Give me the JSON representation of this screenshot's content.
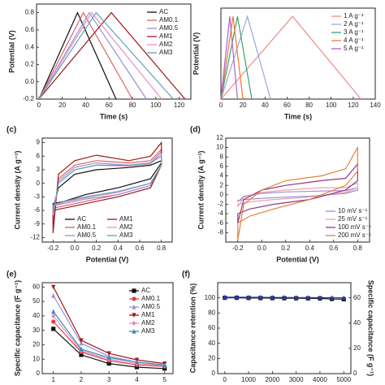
{
  "chart_data": [
    {
      "type": "line",
      "xlabel": "Time (s)",
      "ylabel": "Potential (V)",
      "xlim": [
        -2,
        130
      ],
      "xticks": [
        0,
        20,
        40,
        60,
        80,
        100,
        120
      ],
      "ylim": [
        -0.2,
        0.9
      ],
      "yticks": [
        -0.2,
        {
          "value": 0,
          "label": "0.0"
        },
        0.2,
        0.4,
        0.6,
        0.8
      ],
      "legend": "upper right",
      "series": [
        {
          "name": "AC",
          "color": "#111111",
          "x": [
            0,
            33,
            66
          ],
          "values": [
            -0.2,
            0.8,
            -0.2
          ]
        },
        {
          "name": "AM0.1",
          "color": "#e06060",
          "x": [
            0,
            38,
            80
          ],
          "values": [
            -0.2,
            0.8,
            -0.2
          ]
        },
        {
          "name": "AM0.5",
          "color": "#9a8fd8",
          "x": [
            0,
            43,
            92
          ],
          "values": [
            -0.2,
            0.8,
            -0.2
          ]
        },
        {
          "name": "AM1",
          "color": "#a01818",
          "x": [
            0,
            62,
            125
          ],
          "values": [
            -0.2,
            0.8,
            -0.2
          ]
        },
        {
          "name": "AM2",
          "color": "#e58fbf",
          "x": [
            0,
            45,
            105
          ],
          "values": [
            -0.2,
            0.8,
            -0.2
          ]
        },
        {
          "name": "AM3",
          "color": "#5fa0b8",
          "x": [
            0,
            49,
            115
          ],
          "values": [
            -0.2,
            0.8,
            -0.2
          ]
        }
      ]
    },
    {
      "type": "line",
      "xlabel": "Time (s)",
      "ylabel": "Potential (V)",
      "xlim": [
        0,
        140
      ],
      "xticks": [
        0,
        20,
        40,
        60,
        80,
        100,
        120,
        140
      ],
      "ylim": [
        -0.2,
        0.9
      ],
      "legend": "upper right",
      "series": [
        {
          "name": "1 A g⁻¹",
          "color": "#f08a8a",
          "x": [
            0,
            65,
            127
          ],
          "values": [
            -0.2,
            0.8,
            -0.2
          ]
        },
        {
          "name": "2 A g⁻¹",
          "color": "#9aa6e0",
          "x": [
            0,
            24,
            45
          ],
          "values": [
            -0.2,
            0.8,
            -0.2
          ]
        },
        {
          "name": "3 A g⁻¹",
          "color": "#3aa070",
          "x": [
            0,
            15,
            28
          ],
          "values": [
            -0.2,
            0.8,
            -0.2
          ]
        },
        {
          "name": "4 A g⁻¹",
          "color": "#f07a30",
          "x": [
            0,
            11,
            20
          ],
          "values": [
            -0.2,
            0.8,
            -0.2
          ]
        },
        {
          "name": "5 A g⁻¹",
          "color": "#b060d0",
          "x": [
            0,
            8,
            15
          ],
          "values": [
            -0.2,
            0.8,
            -0.2
          ]
        }
      ]
    },
    {
      "type": "line",
      "label": "(c)",
      "xlabel": "Potential (V)",
      "ylabel": "Current density (A g⁻¹)",
      "xlim": [
        -0.3,
        0.9
      ],
      "xticks": [
        -0.2,
        {
          "value": 0,
          "label": "0.0"
        },
        0.2,
        0.4,
        0.6,
        0.8
      ],
      "ylim": [
        -13,
        10
      ],
      "yticks": [
        -12,
        -9,
        -6,
        -3,
        0,
        3,
        6,
        9
      ],
      "legend": "lower center",
      "legend_columns": 2,
      "x": [
        -0.2,
        -0.15,
        0,
        0.2,
        0.5,
        0.7,
        0.8,
        0.8,
        0.7,
        0.4,
        0.1,
        -0.1,
        -0.2,
        -0.2
      ],
      "series": [
        {
          "name": "AC",
          "color": "#111111",
          "values": [
            -5.5,
            -1,
            2,
            3,
            3.5,
            4,
            5,
            4.5,
            1,
            -1,
            -2.5,
            -4,
            -4.5,
            -5.5
          ]
        },
        {
          "name": "AM0.1",
          "color": "#e06060",
          "values": [
            -9,
            1,
            4,
            5,
            4.5,
            5,
            7.5,
            4,
            -0.5,
            -2.5,
            -4,
            -5,
            -5.5,
            -9
          ]
        },
        {
          "name": "AM0.5",
          "color": "#9a8fd8",
          "values": [
            -8,
            0.5,
            3.5,
            4.5,
            4,
            4.5,
            7,
            4,
            -0.5,
            -2.5,
            -3.5,
            -4.5,
            -5,
            -8
          ]
        },
        {
          "name": "AM1",
          "color": "#a01818",
          "values": [
            -11,
            2,
            5,
            6.2,
            5,
            6,
            9,
            4,
            -1,
            -3,
            -4.5,
            -5.5,
            -6,
            -11
          ]
        },
        {
          "name": "AM2",
          "color": "#e58fbf",
          "values": [
            -7,
            0,
            3,
            4,
            3.8,
            4.3,
            6.5,
            4,
            0,
            -2,
            -3.2,
            -4.2,
            -5,
            -7
          ]
        },
        {
          "name": "AM3",
          "color": "#5fa0b8",
          "values": [
            -6.5,
            0,
            3,
            4,
            4,
            4.5,
            6,
            4,
            0,
            -1.8,
            -3,
            -4,
            -4.8,
            -6.5
          ]
        }
      ]
    },
    {
      "type": "line",
      "label": "(d)",
      "xlabel": "Potential (V)",
      "ylabel": "Current density (A g⁻¹)",
      "xlim": [
        -0.3,
        0.9
      ],
      "xticks": [
        -0.2,
        {
          "value": 0,
          "label": "0.0"
        },
        0.2,
        0.4,
        0.6,
        0.8
      ],
      "ylim": [
        -10,
        12
      ],
      "yticks": [
        -8,
        -6,
        -4,
        -2,
        0,
        2,
        4,
        6,
        8,
        10,
        12
      ],
      "legend": "lower right",
      "x": [
        -0.2,
        -0.15,
        0,
        0.2,
        0.5,
        0.7,
        0.8,
        0.8,
        0.7,
        0.4,
        0.1,
        -0.1,
        -0.2,
        -0.2
      ],
      "series": [
        {
          "name": "10 mV s⁻¹",
          "color": "#9a8fd8",
          "values": [
            -1.5,
            -0.3,
            0.3,
            0.6,
            0.8,
            0.9,
            1.5,
            1,
            0.3,
            -0.3,
            -0.6,
            -0.9,
            -1.2,
            -1.5
          ]
        },
        {
          "name": "25 mV s⁻¹",
          "color": "#f0a0b0",
          "values": [
            -2.5,
            -0.5,
            0.5,
            1,
            1.5,
            1.5,
            2.5,
            1.5,
            0.5,
            -0.5,
            -1,
            -1.5,
            -2,
            -2.5
          ]
        },
        {
          "name": "100 mV s⁻¹",
          "color": "#8a3a8a",
          "values": [
            -6,
            -1,
            1,
            2,
            3,
            3.5,
            6.5,
            3,
            1,
            -1,
            -2,
            -3,
            -4,
            -6
          ]
        },
        {
          "name": "200 mV s⁻¹",
          "color": "#e8803a",
          "values": [
            -9.5,
            -2,
            1,
            3,
            4,
            5.5,
            10,
            5,
            2,
            -1,
            -3,
            -4.5,
            -6,
            -9.5
          ]
        }
      ]
    },
    {
      "type": "line",
      "label": "(e)",
      "ylabel": "Specific capacitance (F g⁻¹)",
      "xlim": [
        0.6,
        5.3
      ],
      "xticks": [
        1,
        2,
        3,
        4,
        5
      ],
      "ylim": [
        0,
        63
      ],
      "yticks": [
        0,
        10,
        20,
        30,
        40,
        50,
        60
      ],
      "legend": "upper right",
      "x": [
        1,
        2,
        3,
        4,
        5
      ],
      "series": [
        {
          "name": "AC",
          "color": "#111111",
          "marker": "square",
          "values": [
            31,
            13,
            7,
            4.5,
            3.5
          ]
        },
        {
          "name": "AM0.1",
          "color": "#e04040",
          "marker": "circle",
          "values": [
            36,
            15,
            9,
            6,
            5
          ]
        },
        {
          "name": "AM0.5",
          "color": "#9a8fd8",
          "marker": "triangle-up",
          "values": [
            54,
            21,
            12,
            8,
            6
          ]
        },
        {
          "name": "AM1",
          "color": "#a01818",
          "marker": "triangle-down",
          "values": [
            60,
            23,
            14,
            9.5,
            7
          ]
        },
        {
          "name": "AM2",
          "color": "#e58fbf",
          "marker": "diamond",
          "values": [
            40,
            16,
            10,
            7,
            5.5
          ]
        },
        {
          "name": "AM3",
          "color": "#3a8ab8",
          "marker": "triangle-up",
          "values": [
            43,
            17,
            11,
            8,
            6
          ]
        }
      ]
    },
    {
      "type": "line",
      "label": "(f)",
      "ylabel": "Capacitance retention (%)",
      "y2label": "Specific capacitance (F g⁻¹)",
      "xlim": [
        -300,
        5300
      ],
      "xticks": [
        0,
        1000,
        2000,
        3000,
        4000,
        5000
      ],
      "ylim": [
        0,
        120
      ],
      "yticks": [
        0,
        20,
        40,
        60,
        80,
        100
      ],
      "y2lim": [
        0,
        72
      ],
      "y2ticks": [
        0,
        20,
        40,
        60
      ],
      "x": [
        0,
        500,
        1000,
        1500,
        2000,
        2500,
        3000,
        3500,
        4000,
        4500,
        5000
      ],
      "series": [
        {
          "color": "#111111",
          "marker": "square",
          "values": [
            100,
            100,
            99.8,
            99.7,
            99.6,
            99.5,
            99.4,
            99.3,
            99.2,
            98.5,
            98.2
          ]
        },
        {
          "color": "#2a3ab8",
          "marker": "triangle-up",
          "axis": "y2",
          "values": [
            60.5,
            60.5,
            60.4,
            60.4,
            60.3,
            60.3,
            60.2,
            60.2,
            60.1,
            60.1,
            60
          ]
        }
      ]
    }
  ]
}
